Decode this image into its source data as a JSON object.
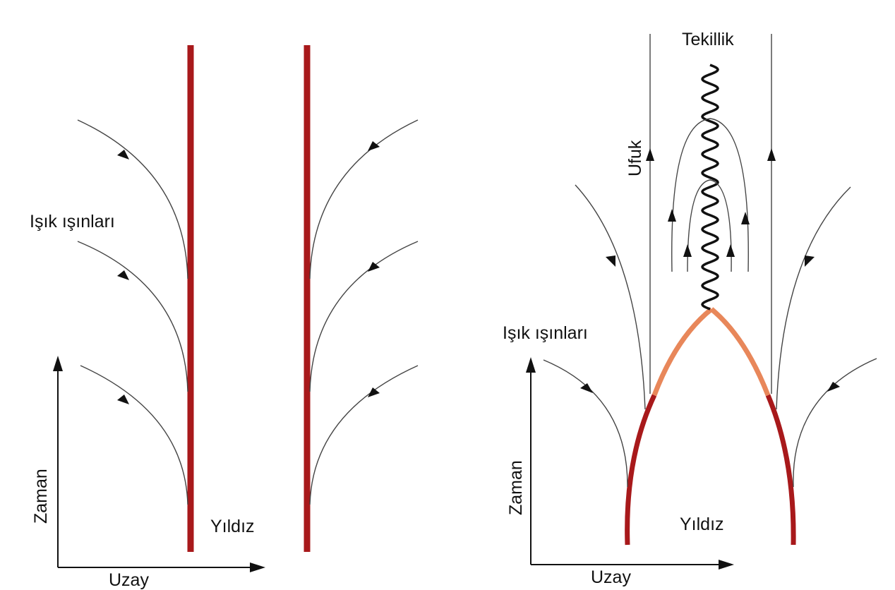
{
  "left_panel": {
    "light_rays_label": "Işık ışınları",
    "time_label": "Zaman",
    "space_label": "Uzay",
    "star_label": "Yıldız"
  },
  "right_panel": {
    "singularity_label": "Tekillik",
    "horizon_label": "Ufuk",
    "light_rays_label": "Işık ışınları",
    "time_label": "Zaman",
    "space_label": "Uzay",
    "star_label": "Yıldız"
  },
  "colors": {
    "star_surface": "#a8191b",
    "collapsing_surface": "#e8875a",
    "singularity": "#111111",
    "light_ray": "#444444"
  }
}
